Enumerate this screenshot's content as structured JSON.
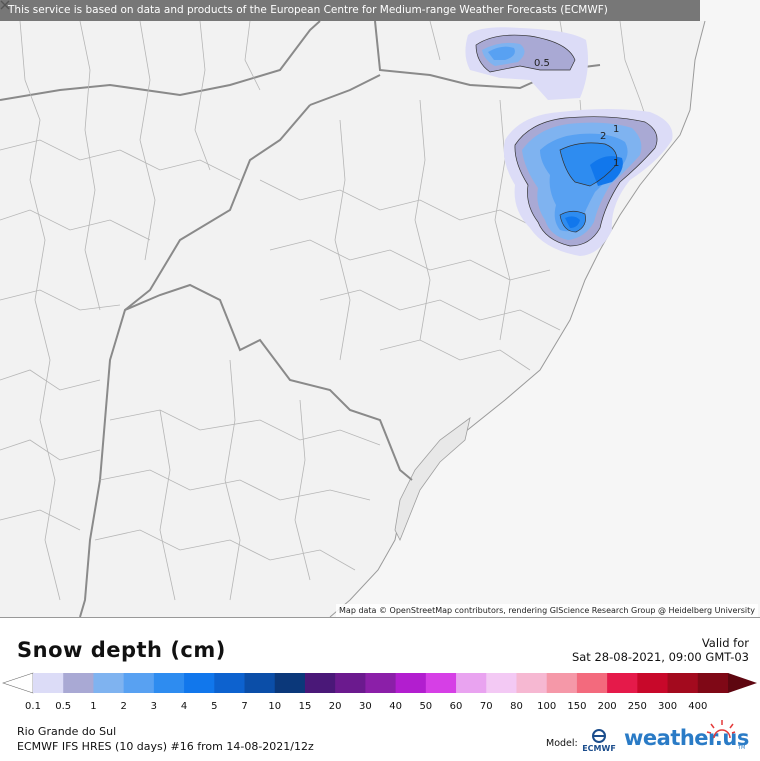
{
  "banner": {
    "text": "This service is based on data and products of the European Centre for Medium-range Weather Forecasts (ECMWF)"
  },
  "map": {
    "attribution": "Map data © OpenStreetMap contributors, rendering GIScience Research Group @ Heidelberg University",
    "contour_labels": [
      "0.5",
      "2",
      "1",
      "1"
    ]
  },
  "legend": {
    "title": "Snow depth (cm)",
    "valid_label": "Valid for",
    "valid_time": "Sat 28-08-2021, 09:00 GMT-03",
    "ticks": [
      "0.1",
      "0.5",
      "1",
      "2",
      "3",
      "4",
      "5",
      "7",
      "10",
      "15",
      "20",
      "30",
      "40",
      "50",
      "60",
      "70",
      "80",
      "100",
      "150",
      "200",
      "250",
      "300",
      "400"
    ],
    "colors": [
      "#dcdcf7",
      "#a9a9d4",
      "#7fb3f0",
      "#58a1f2",
      "#2e8cf0",
      "#1177ec",
      "#0d62cf",
      "#0b4ea8",
      "#0b387a",
      "#4a1878",
      "#6b1a8e",
      "#8b1fa8",
      "#b21ecf",
      "#d63fe6",
      "#e9a3f0",
      "#f3c9f4",
      "#f6b8d2",
      "#f598a8",
      "#f36a7d",
      "#e51a4a",
      "#c8082a",
      "#a30a1e",
      "#7f0816",
      "#5e0610"
    ],
    "region": "Rio Grande do Sul",
    "run": "ECMWF IFS HRES (10 days) #16 from  14-08-2021/12z",
    "model_label": "Model:",
    "model_logo_text": "ECMWF",
    "brand": "weather.us",
    "brand_tm": "TM"
  }
}
